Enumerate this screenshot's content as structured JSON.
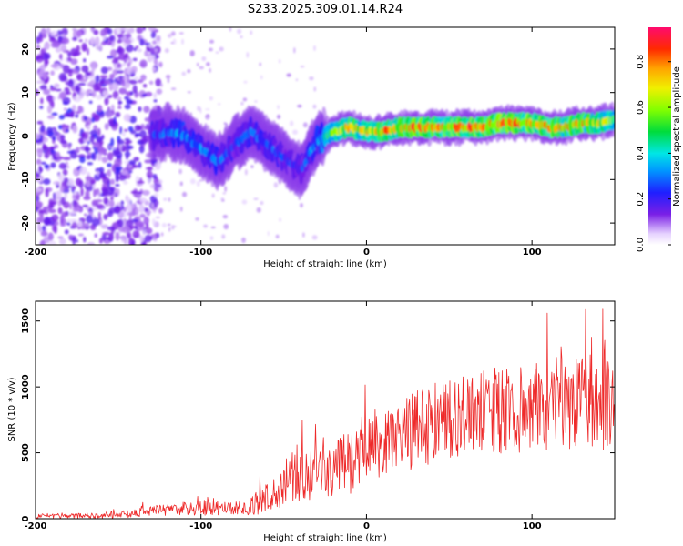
{
  "title": "S233.2025.309.01.14.R24",
  "colors": {
    "snr_line": "#ee2a2a",
    "axes": "#000000",
    "background": "#ffffff"
  },
  "chart_data": [
    {
      "type": "heatmap",
      "name": "spectrogram",
      "xlabel": "Height of straight line (km)",
      "ylabel": "Frequency (Hz)",
      "xlim": [
        -200,
        150
      ],
      "ylim": [
        -25,
        25
      ],
      "xticks": [
        -200,
        -100,
        0,
        100
      ],
      "yticks": [
        -20,
        -10,
        0,
        10,
        20
      ],
      "colorbar": {
        "label": "Normalized spectral amplitude",
        "range": [
          0,
          0.95
        ],
        "ticks": [
          0.0,
          0.2,
          0.4,
          0.6,
          0.8
        ],
        "tick_labels": [
          "0.0",
          "0.2",
          "0.4",
          "0.6",
          "0.8"
        ]
      },
      "ridge": {
        "x": [
          -130,
          -120,
          -110,
          -100,
          -90,
          -80,
          -70,
          -60,
          -50,
          -40,
          -30,
          -20,
          -10,
          0,
          10,
          20,
          30,
          40,
          50,
          60,
          70,
          80,
          90,
          100,
          110,
          120,
          130,
          140,
          150
        ],
        "freq": [
          0,
          1,
          0,
          -3,
          -6,
          -2,
          1,
          -2,
          -5,
          -8,
          -1,
          1,
          2,
          1,
          1,
          2,
          2,
          2,
          2,
          2,
          2,
          3,
          3,
          3,
          2,
          2,
          3,
          3,
          4
        ],
        "amplitude": [
          0.25,
          0.3,
          0.35,
          0.35,
          0.3,
          0.25,
          0.3,
          0.3,
          0.25,
          0.25,
          0.35,
          0.6,
          0.75,
          0.7,
          0.8,
          0.75,
          0.85,
          0.8,
          0.8,
          0.85,
          0.8,
          0.85,
          0.85,
          0.8,
          0.8,
          0.75,
          0.8,
          0.7,
          0.6
        ]
      }
    },
    {
      "type": "line",
      "name": "snr",
      "xlabel": "Height of straight line (km)",
      "ylabel": "SNR (10 * v/v)",
      "xlim": [
        -200,
        150
      ],
      "ylim": [
        0,
        1650
      ],
      "xticks": [
        -200,
        -100,
        0,
        100
      ],
      "yticks": [
        0,
        500,
        1000,
        1500
      ],
      "envelope": {
        "x": [
          -200,
          -180,
          -160,
          -140,
          -120,
          -100,
          -80,
          -70,
          -60,
          -50,
          -40,
          -30,
          -20,
          -10,
          0,
          10,
          20,
          30,
          40,
          50,
          60,
          70,
          80,
          90,
          100,
          110,
          120,
          130,
          140,
          150
        ],
        "mean": [
          20,
          25,
          25,
          40,
          70,
          80,
          80,
          90,
          150,
          250,
          320,
          350,
          380,
          430,
          500,
          580,
          640,
          680,
          720,
          760,
          780,
          800,
          820,
          830,
          850,
          870,
          880,
          900,
          900,
          880
        ],
        "spread": [
          25,
          25,
          30,
          40,
          60,
          70,
          60,
          80,
          150,
          220,
          250,
          250,
          260,
          300,
          320,
          340,
          360,
          380,
          380,
          400,
          400,
          400,
          420,
          420,
          430,
          450,
          450,
          480,
          500,
          500
        ]
      }
    }
  ]
}
